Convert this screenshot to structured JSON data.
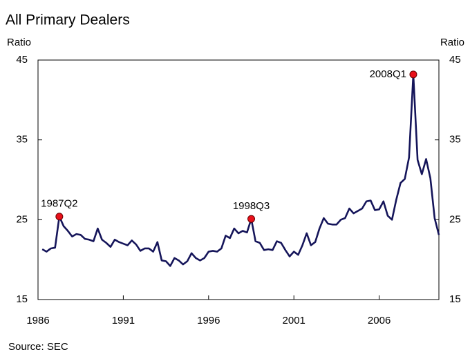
{
  "chart_data": {
    "type": "line",
    "title": "All Primary Dealers",
    "y_label": "Ratio",
    "y2_label": "Ratio",
    "source": "Source: SEC",
    "x": [
      1986.25,
      1986.5,
      1986.75,
      1987,
      1987.25,
      1987.5,
      1987.75,
      1988,
      1988.25,
      1988.5,
      1988.75,
      1989,
      1989.25,
      1989.5,
      1989.75,
      1990,
      1990.25,
      1990.5,
      1990.75,
      1991,
      1991.25,
      1991.5,
      1991.75,
      1992,
      1992.25,
      1992.5,
      1992.75,
      1993,
      1993.25,
      1993.5,
      1993.75,
      1994,
      1994.25,
      1994.5,
      1994.75,
      1995,
      1995.25,
      1995.5,
      1995.75,
      1996,
      1996.25,
      1996.5,
      1996.75,
      1997,
      1997.25,
      1997.5,
      1997.75,
      1998,
      1998.25,
      1998.5,
      1998.75,
      1999,
      1999.25,
      1999.5,
      1999.75,
      2000,
      2000.25,
      2000.5,
      2000.75,
      2001,
      2001.25,
      2001.5,
      2001.75,
      2002,
      2002.25,
      2002.5,
      2002.75,
      2003,
      2003.25,
      2003.5,
      2003.75,
      2004,
      2004.25,
      2004.5,
      2004.75,
      2005,
      2005.25,
      2005.5,
      2005.75,
      2006,
      2006.25,
      2006.5,
      2006.75,
      2007,
      2007.25,
      2007.5,
      2007.75,
      2008,
      2008.25,
      2008.5,
      2008.75,
      2009,
      2009.25,
      2009.5
    ],
    "series": [
      {
        "name": "All Primary Dealers",
        "color": "#15155a",
        "values": [
          21.3,
          21.0,
          21.4,
          21.5,
          25.4,
          24.2,
          23.6,
          22.9,
          23.2,
          23.1,
          22.6,
          22.5,
          22.3,
          23.9,
          22.5,
          22.1,
          21.6,
          22.5,
          22.2,
          22.0,
          21.8,
          22.4,
          21.9,
          21.1,
          21.4,
          21.4,
          21.0,
          22.2,
          19.9,
          19.8,
          19.2,
          20.2,
          19.9,
          19.4,
          19.8,
          20.8,
          20.2,
          19.9,
          20.2,
          21.0,
          21.1,
          21.0,
          21.4,
          23.0,
          22.7,
          23.9,
          23.3,
          23.6,
          23.4,
          25.1,
          22.3,
          22.1,
          21.2,
          21.3,
          21.2,
          22.3,
          22.1,
          21.2,
          20.4,
          21.0,
          20.6,
          21.8,
          23.3,
          21.8,
          22.2,
          23.9,
          25.2,
          24.5,
          24.4,
          24.4,
          25.0,
          25.2,
          26.4,
          25.8,
          26.1,
          26.4,
          27.3,
          27.4,
          26.2,
          26.3,
          27.3,
          25.5,
          25.0,
          27.5,
          29.6,
          30.1,
          32.8,
          43.2,
          32.5,
          30.7,
          32.6,
          30.2,
          25.2,
          23.1
        ]
      }
    ],
    "annotations": [
      {
        "label": "1987Q2",
        "x": 1987.25,
        "y": 25.4
      },
      {
        "label": "1998Q3",
        "x": 1998.5,
        "y": 25.1
      },
      {
        "label": "2008Q1",
        "x": 2008,
        "y": 43.2
      }
    ],
    "marker_color": "#e8101a",
    "xlim": [
      1986,
      2009.5
    ],
    "xticks": [
      1986,
      1991,
      1996,
      2001,
      2006
    ],
    "ylim": [
      15,
      45
    ],
    "yticks": [
      15,
      25,
      35,
      45
    ],
    "y2lim": [
      15,
      45
    ],
    "y2ticks": [
      15,
      25,
      35,
      45
    ]
  }
}
